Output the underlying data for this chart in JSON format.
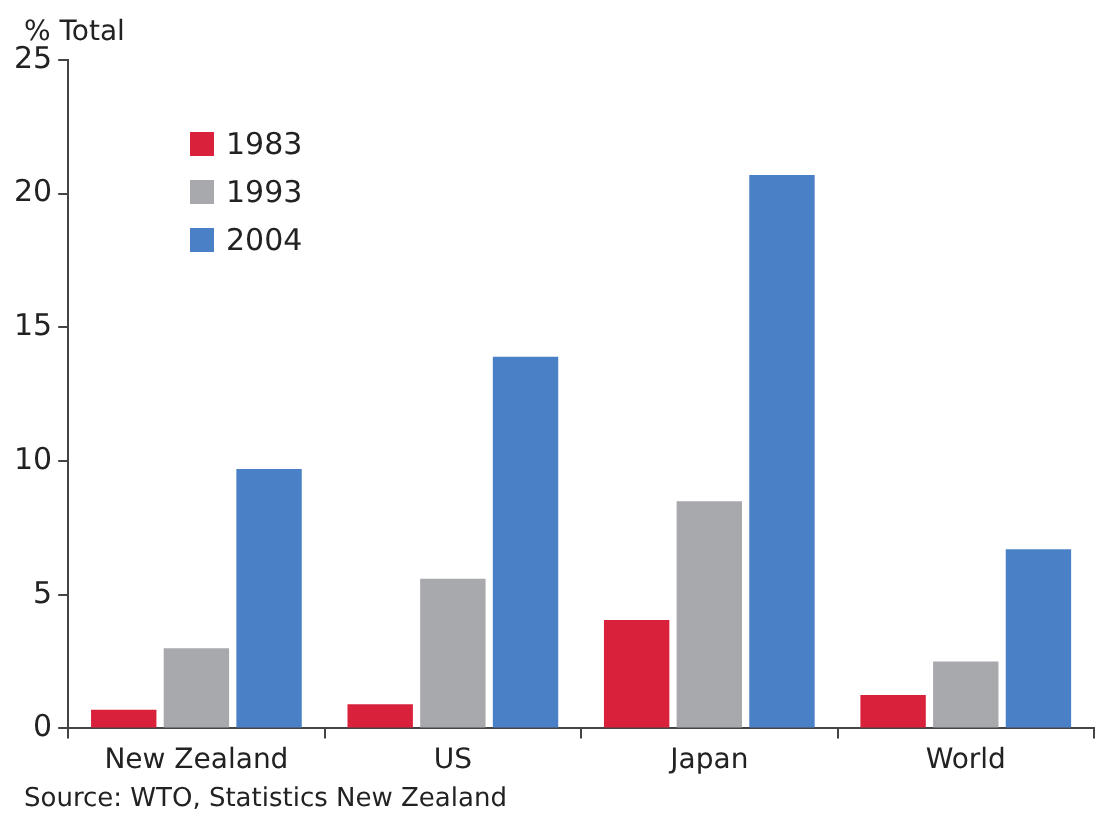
{
  "chart_data": {
    "type": "bar",
    "ylabel": "% Total",
    "categories": [
      "New Zealand",
      "US",
      "Japan",
      "World"
    ],
    "series": [
      {
        "name": "1983",
        "color": "#d9213b",
        "values": [
          0.7,
          0.9,
          4.05,
          1.25
        ]
      },
      {
        "name": "1993",
        "color": "#a7a9ac",
        "values": [
          3.0,
          5.6,
          8.5,
          2.5
        ]
      },
      {
        "name": "2004",
        "color": "#4a80c5",
        "values": [
          9.7,
          13.9,
          20.7,
          6.7
        ]
      }
    ],
    "ylim": [
      0,
      25
    ],
    "yticks": [
      0,
      5,
      10,
      15,
      20,
      25
    ],
    "grid": false,
    "legend": "top left",
    "annotations": [
      "Source: WTO, Statistics New Zealand"
    ]
  }
}
